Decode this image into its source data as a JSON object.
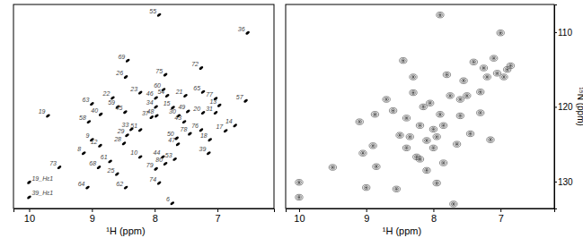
{
  "chart_data": [
    {
      "type": "scatter",
      "marker": "ellipse",
      "tick_labels": "x",
      "color": "#000000",
      "x_label": "¹H (ppm)",
      "xlim": [
        10.25,
        6.1
      ],
      "xticks": [
        10,
        9,
        8,
        7
      ],
      "ylim": [
        106.3,
        133.6
      ],
      "labels": [
        "55",
        "36",
        "69",
        "72",
        "26",
        "75",
        "60",
        "65",
        "54",
        "21",
        "57",
        "63",
        "22",
        "23",
        "46",
        "19",
        "58",
        "40",
        "18",
        "14",
        "17",
        "13",
        "31",
        "77",
        "39",
        "9",
        "8",
        "12",
        "68",
        "73",
        "64",
        "62",
        "74",
        "6",
        "25",
        "61",
        "53",
        "80",
        "44",
        "79",
        "47",
        "50",
        "78",
        "76",
        "43",
        "30",
        "49",
        "20",
        "15",
        "34",
        "45",
        "59",
        "28",
        "29",
        "33",
        "51",
        "37",
        "48",
        "10",
        "19_Hε1",
        "39_Hε1"
      ],
      "x": [
        7.93,
        6.52,
        8.43,
        7.26,
        8.46,
        7.83,
        7.86,
        7.23,
        7.8,
        7.51,
        6.55,
        9.0,
        8.67,
        8.23,
        7.98,
        9.7,
        9.05,
        8.86,
        7.12,
        6.72,
        6.87,
        6.97,
        7.03,
        7.03,
        7.14,
        9.0,
        9.13,
        8.87,
        8.89,
        9.52,
        9.07,
        8.46,
        7.93,
        7.72,
        8.6,
        8.71,
        7.68,
        7.83,
        7.87,
        7.98,
        7.63,
        7.65,
        7.44,
        7.26,
        7.53,
        7.62,
        7.47,
        7.23,
        7.71,
        7.98,
        8.47,
        8.59,
        8.49,
        8.44,
        8.37,
        8.23,
        8.05,
        7.97,
        8.23,
        10.0,
        10.0
      ],
      "y": [
        107.7,
        110.1,
        113.8,
        114.8,
        116.0,
        115.7,
        117.7,
        118.0,
        118.5,
        118.5,
        119.2,
        119.6,
        118.8,
        118.1,
        118.8,
        121.2,
        122.0,
        121.0,
        124.4,
        122.5,
        123.2,
        119.8,
        120.8,
        118.9,
        126.2,
        124.4,
        126.2,
        125.2,
        128.1,
        128.1,
        130.8,
        130.8,
        130.2,
        132.9,
        129.0,
        127.3,
        127.0,
        127.6,
        126.7,
        128.3,
        125.0,
        124.2,
        123.6,
        123.1,
        122.0,
        121.2,
        120.6,
        120.8,
        120.1,
        120.0,
        120.7,
        120.0,
        124.9,
        123.8,
        123.0,
        123.1,
        121.4,
        121.2,
        126.7,
        130.1,
        132.1
      ]
    },
    {
      "type": "scatter",
      "marker": "contour",
      "tick_labels": true,
      "color": "#555555",
      "x_label": "¹H (ppm)",
      "y_label": "¹⁵N (ppm)",
      "xlim": [
        10.2,
        6.2
      ],
      "xticks": [
        10,
        9,
        8,
        7
      ],
      "ylim": [
        106.3,
        133.6
      ],
      "yticks": [
        110,
        120,
        130
      ],
      "x": [
        10.0,
        10.0,
        9.5,
        9.1,
        9.05,
        9.0,
        8.9,
        8.87,
        8.85,
        8.7,
        8.6,
        8.55,
        8.5,
        8.45,
        8.4,
        8.35,
        8.3,
        8.25,
        8.2,
        8.15,
        8.1,
        8.05,
        8.0,
        7.95,
        7.9,
        7.85,
        7.8,
        7.75,
        7.7,
        7.65,
        7.6,
        7.55,
        7.5,
        7.45,
        7.4,
        7.3,
        7.25,
        7.2,
        7.15,
        7.1,
        7.05,
        7.0,
        6.95,
        6.9,
        6.85,
        7.9,
        7.85,
        8.4,
        8.2,
        8.0,
        7.6,
        7.3,
        8.3,
        8.1,
        7.95
      ],
      "y": [
        130.1,
        132.1,
        128.1,
        122,
        126.2,
        130.8,
        125.2,
        121,
        128,
        119,
        120.5,
        131,
        123.8,
        113.8,
        121.5,
        124,
        118.1,
        126.7,
        122.5,
        120,
        124.5,
        119.5,
        123,
        130.2,
        107.7,
        127.5,
        115.7,
        118.5,
        133,
        125,
        121.2,
        116.5,
        118.5,
        123.6,
        114,
        120.8,
        114.8,
        116,
        124.4,
        113.5,
        115.5,
        110.1,
        116,
        115,
        114.5,
        121,
        122.5,
        125.5,
        127,
        125.5,
        119,
        118,
        116,
        128.5,
        124
      ]
    }
  ]
}
